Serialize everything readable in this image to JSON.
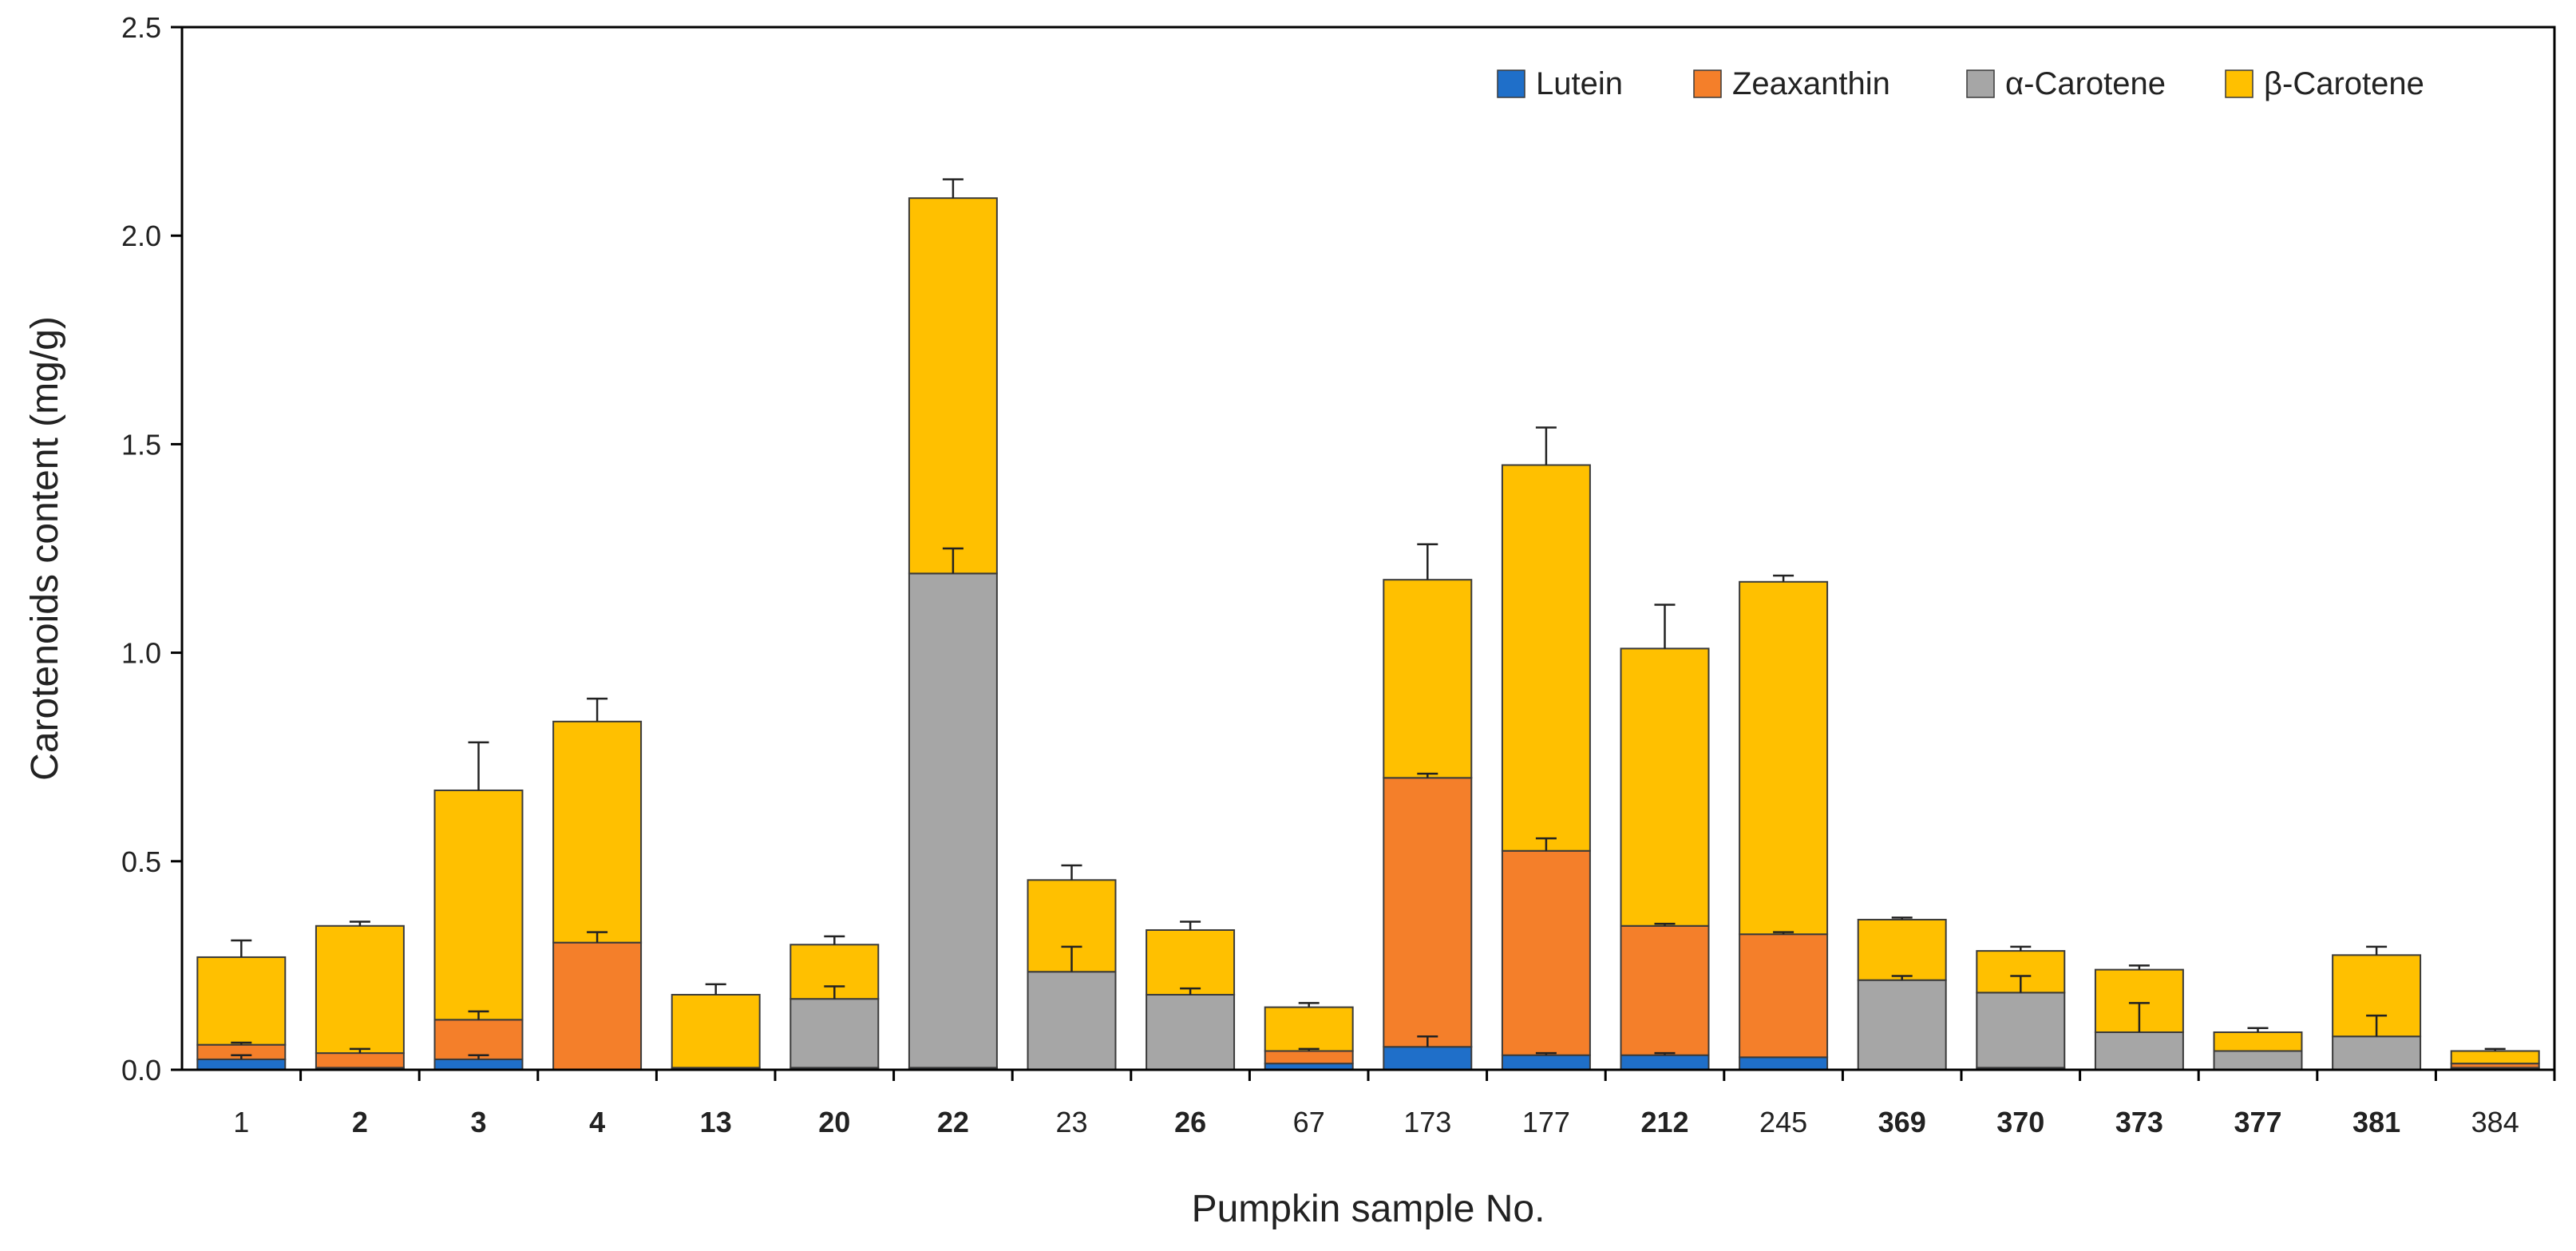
{
  "chart_data": {
    "type": "bar",
    "stacked": true,
    "title": "",
    "xlabel": "Pumpkin sample No.",
    "ylabel": "Carotenoids content (mg/g)",
    "ylim": [
      0,
      2.5
    ],
    "yticks": [
      "0.0",
      "0.5",
      "1.0",
      "1.5",
      "2.0",
      "2.5"
    ],
    "ytick_values": [
      0,
      0.5,
      1.0,
      1.5,
      2.0,
      2.5
    ],
    "grid": false,
    "legend_position": "top-right",
    "categories": [
      "1",
      "2",
      "3",
      "4",
      "13",
      "20",
      "22",
      "23",
      "26",
      "67",
      "173",
      "177",
      "212",
      "245",
      "369",
      "370",
      "373",
      "377",
      "381",
      "384"
    ],
    "bold_categories": [
      "2",
      "3",
      "4",
      "13",
      "20",
      "22",
      "26",
      "212",
      "369",
      "370",
      "373",
      "377",
      "381"
    ],
    "series": [
      {
        "name": "Lutein",
        "color": "#1f6fc9",
        "values": [
          0.025,
          0.005,
          0.025,
          0.0,
          0.005,
          0.005,
          0.005,
          0.0,
          0.0,
          0.015,
          0.055,
          0.035,
          0.035,
          0.03,
          0.0,
          0.005,
          0.0,
          0.0,
          0.0,
          0.005
        ]
      },
      {
        "name": "Zeaxanthin",
        "color": "#f47f2a",
        "values": [
          0.035,
          0.035,
          0.095,
          0.305,
          0.0,
          0.0,
          0.0,
          0.0,
          0.0,
          0.03,
          0.645,
          0.49,
          0.31,
          0.295,
          0.0,
          0.0,
          0.0,
          0.0,
          0.0,
          0.01
        ]
      },
      {
        "name": "α-Carotene",
        "color": "#a6a6a6",
        "values": [
          0.0,
          0.0,
          0.0,
          0.0,
          0.0,
          0.165,
          1.185,
          0.235,
          0.18,
          0.0,
          0.0,
          0.0,
          0.0,
          0.0,
          0.215,
          0.18,
          0.09,
          0.045,
          0.08,
          0.0
        ]
      },
      {
        "name": "β-Carotene",
        "color": "#ffc000",
        "values": [
          0.21,
          0.305,
          0.55,
          0.53,
          0.175,
          0.13,
          0.9,
          0.22,
          0.155,
          0.105,
          0.475,
          0.925,
          0.665,
          0.845,
          0.145,
          0.1,
          0.15,
          0.045,
          0.195,
          0.03
        ]
      }
    ],
    "error_bars": {
      "series_index_tops": [
        0,
        1,
        2,
        3
      ],
      "lutein": [
        0.01,
        0.0,
        0.01,
        0.0,
        0.0,
        0.0,
        0.0,
        0.0,
        0.0,
        0.0,
        0.025,
        0.005,
        0.005,
        0.0,
        0.0,
        0.0,
        0.0,
        0.0,
        0.0,
        0.0
      ],
      "zeaxanthin": [
        0.005,
        0.01,
        0.02,
        0.025,
        0.0,
        0.0,
        0.0,
        0.0,
        0.0,
        0.005,
        0.01,
        0.03,
        0.005,
        0.005,
        0.0,
        0.0,
        0.0,
        0.0,
        0.0,
        0.0
      ],
      "alpha": [
        0.0,
        0.0,
        0.0,
        0.0,
        0.0,
        0.03,
        0.06,
        0.06,
        0.015,
        0.0,
        0.0,
        0.0,
        0.0,
        0.0,
        0.01,
        0.04,
        0.07,
        0.0,
        0.05,
        0.0
      ],
      "beta": [
        0.04,
        0.01,
        0.115,
        0.055,
        0.025,
        0.02,
        0.045,
        0.035,
        0.02,
        0.01,
        0.085,
        0.09,
        0.105,
        0.015,
        0.005,
        0.01,
        0.01,
        0.01,
        0.02,
        0.005
      ]
    }
  }
}
